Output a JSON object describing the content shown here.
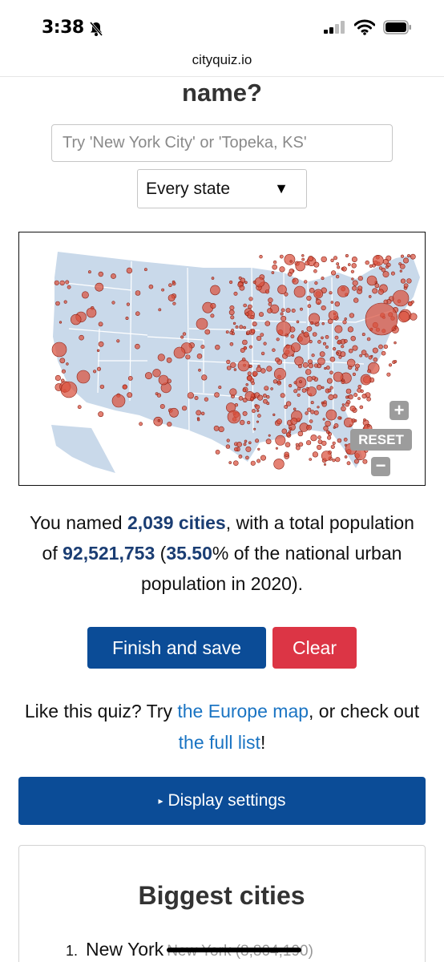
{
  "status": {
    "time": "3:38"
  },
  "browser": {
    "url": "cityquiz.io"
  },
  "quiz": {
    "heading": "name?",
    "search_placeholder": "Try 'New York City' or 'Topeka, KS'",
    "state_filter": "Every state",
    "state_filter_arrow": "▼"
  },
  "map": {
    "zoom_in": "+",
    "reset": "RESET",
    "zoom_out": "−",
    "land_color": "#c9d9ea",
    "dot_color": "#d9503d"
  },
  "result": {
    "prefix": "You named ",
    "cities": "2,039 cities",
    "middle": ", with a total population of ",
    "population": "92,521,753",
    "paren_open": " (",
    "percent": "35.50",
    "suffix": "% of the national urban population in 2020)."
  },
  "actions": {
    "finish": "Finish and save",
    "clear": "Clear"
  },
  "promo": {
    "prefix": "Like this quiz? Try ",
    "europe_link": "the Europe map",
    "middle": ", or check out ",
    "list_link": "the full list",
    "suffix": "!"
  },
  "settings": {
    "triangle": "▸",
    "label": "Display settings"
  },
  "biggest": {
    "title": "Biggest cities",
    "items": [
      {
        "rank": "1.",
        "name": "New York",
        "detail": "New York (8,804,190)"
      }
    ]
  }
}
